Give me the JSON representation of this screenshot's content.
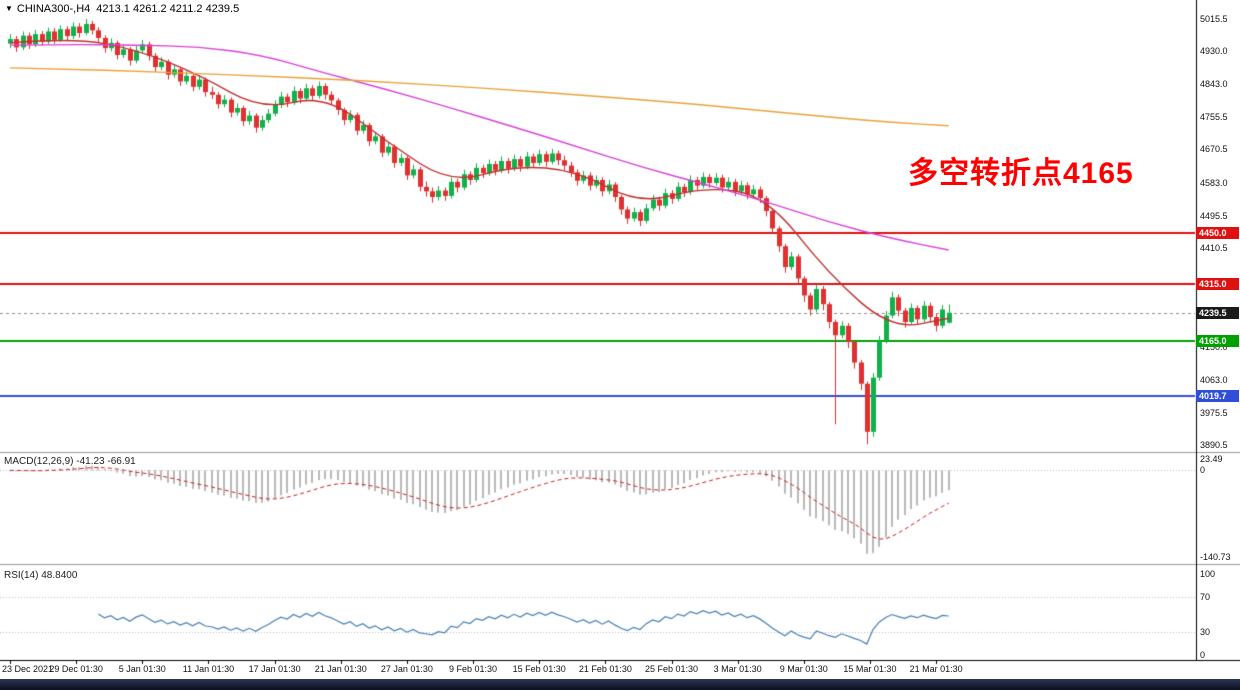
{
  "header": {
    "dropdown_icon": "▼",
    "symbol_timeframe": "CHINA300-,H4",
    "ohlc": "4213.1 4261.2 4211.2 4239.5"
  },
  "annotation": {
    "text": "多空转折点4165",
    "color": "#ff0000"
  },
  "colors": {
    "bull": "#12b04a",
    "bear": "#e03030",
    "ma_fast": "#c22f2f",
    "ma_mid": "#d943d9",
    "ma_slow": "#e8a33b",
    "macd_hist": "#b9b9b9",
    "macd_signal": "#d02020",
    "rsi_line": "#4a7fb5",
    "dotted_level": "#c0c0c0",
    "separator": "#9a9a9a",
    "axis_line": "#000000"
  },
  "chart_data": [
    {
      "type": "candlestick",
      "title": "CHINA300- H4",
      "price_range": [
        3877,
        5044
      ],
      "label_step": 10.5,
      "x_labels": [
        "23 Dec 2021",
        "29 Dec 01:30",
        "5 Jan 01:30",
        "11 Jan 01:30",
        "17 Jan 01:30",
        "21 Jan 01:30",
        "27 Jan 01:30",
        "9 Feb 01:30",
        "15 Feb 01:30",
        "21 Feb 01:30",
        "25 Feb 01:30",
        "3 Mar 01:30",
        "9 Mar 01:30",
        "15 Mar 01:30",
        "21 Mar 01:30"
      ],
      "price_axis_labels": [
        "5015.5",
        "4930.0",
        "4843.0",
        "4755.5",
        "4670.5",
        "4583.0",
        "4495.5",
        "4410.5",
        "4150.0",
        "4063.0",
        "3975.5",
        "3890.5"
      ],
      "hlines": [
        {
          "price": 4450.0,
          "label": "4450.0",
          "color": "#e01010",
          "width": 2
        },
        {
          "price": 4315.0,
          "label": "4315.0",
          "color": "#e01010",
          "width": 2
        },
        {
          "price": 4165.0,
          "label": "4165.0",
          "color": "#00a000",
          "width": 2
        },
        {
          "price": 4019.7,
          "label": "4019.7",
          "color": "#2f4fd8",
          "width": 2
        }
      ],
      "current_price": {
        "value": 4239.5,
        "label": "4239.5",
        "badge_bg": "#1a1a1a"
      },
      "overlays": [
        {
          "name": "ma-fast-red",
          "color": "#c22f2f",
          "sample_step": 10,
          "values": [
            4952,
            4965,
            4935,
            4868,
            4775,
            4815,
            4688,
            4580,
            4628,
            4615,
            4525,
            4572,
            4550,
            4340,
            4195,
            4225
          ]
        },
        {
          "name": "ma-mid-magenta",
          "color": "#d943d9",
          "sample_step": 10,
          "values": [
            4946,
            4948,
            4946,
            4942,
            4920,
            4872,
            4828,
            4780,
            4730,
            4678,
            4625,
            4580,
            4533,
            4478,
            4435,
            4405
          ]
        },
        {
          "name": "ma-slow-orange",
          "color": "#e8a33b",
          "sample_step": 10,
          "values": [
            4886,
            4882,
            4877,
            4871,
            4864,
            4857,
            4848,
            4838,
            4827,
            4815,
            4802,
            4788,
            4772,
            4756,
            4742,
            4733
          ]
        }
      ],
      "candles": [
        [
          4950,
          4975,
          4938,
          4962
        ],
        [
          4962,
          4970,
          4928,
          4940
        ],
        [
          4940,
          4982,
          4933,
          4971
        ],
        [
          4971,
          4979,
          4936,
          4948
        ],
        [
          4948,
          4986,
          4941,
          4975
        ],
        [
          4975,
          4983,
          4944,
          4955
        ],
        [
          4955,
          4992,
          4949,
          4982
        ],
        [
          4982,
          4991,
          4950,
          4960
        ],
        [
          4960,
          4998,
          4954,
          4988
        ],
        [
          4988,
          4996,
          4958,
          4970
        ],
        [
          4970,
          5006,
          4962,
          4995
        ],
        [
          4995,
          5004,
          4966,
          4978
        ],
        [
          4978,
          5015,
          4972,
          5002
        ],
        [
          5002,
          5010,
          4974,
          4985
        ],
        [
          4985,
          4993,
          4952,
          4965
        ],
        [
          4965,
          4972,
          4926,
          4938
        ],
        [
          4938,
          4964,
          4930,
          4952
        ],
        [
          4952,
          4958,
          4908,
          4920
        ],
        [
          4920,
          4947,
          4912,
          4935
        ],
        [
          4935,
          4941,
          4892,
          4905
        ],
        [
          4905,
          4944,
          4898,
          4932
        ],
        [
          4932,
          4960,
          4925,
          4948
        ],
        [
          4948,
          4955,
          4905,
          4918
        ],
        [
          4918,
          4925,
          4875,
          4888
        ],
        [
          4888,
          4914,
          4880,
          4902
        ],
        [
          4902,
          4908,
          4855,
          4868
        ],
        [
          4868,
          4894,
          4860,
          4882
        ],
        [
          4882,
          4888,
          4838,
          4850
        ],
        [
          4850,
          4877,
          4842,
          4865
        ],
        [
          4865,
          4871,
          4824,
          4836
        ],
        [
          4836,
          4867,
          4828,
          4855
        ],
        [
          4855,
          4861,
          4810,
          4822
        ],
        [
          4822,
          4836,
          4804,
          4815
        ],
        [
          4815,
          4822,
          4778,
          4790
        ],
        [
          4790,
          4814,
          4782,
          4802
        ],
        [
          4802,
          4808,
          4755,
          4768
        ],
        [
          4768,
          4792,
          4760,
          4780
        ],
        [
          4780,
          4786,
          4732,
          4745
        ],
        [
          4745,
          4772,
          4736,
          4760
        ],
        [
          4760,
          4766,
          4715,
          4728
        ],
        [
          4728,
          4760,
          4720,
          4748
        ],
        [
          4748,
          4777,
          4740,
          4765
        ],
        [
          4765,
          4800,
          4758,
          4788
        ],
        [
          4788,
          4822,
          4780,
          4810
        ],
        [
          4810,
          4818,
          4782,
          4795
        ],
        [
          4795,
          4837,
          4788,
          4825
        ],
        [
          4825,
          4832,
          4792,
          4805
        ],
        [
          4805,
          4844,
          4798,
          4832
        ],
        [
          4832,
          4840,
          4800,
          4812
        ],
        [
          4812,
          4850,
          4805,
          4838
        ],
        [
          4838,
          4845,
          4802,
          4815
        ],
        [
          4815,
          4824,
          4788,
          4800
        ],
        [
          4800,
          4806,
          4762,
          4775
        ],
        [
          4775,
          4781,
          4735,
          4748
        ],
        [
          4748,
          4774,
          4740,
          4762
        ],
        [
          4762,
          4768,
          4708,
          4720
        ],
        [
          4720,
          4747,
          4712,
          4735
        ],
        [
          4735,
          4741,
          4680,
          4692
        ],
        [
          4692,
          4717,
          4684,
          4705
        ],
        [
          4705,
          4711,
          4650,
          4662
        ],
        [
          4662,
          4690,
          4654,
          4678
        ],
        [
          4678,
          4684,
          4622,
          4635
        ],
        [
          4635,
          4660,
          4627,
          4648
        ],
        [
          4648,
          4654,
          4590,
          4602
        ],
        [
          4602,
          4630,
          4594,
          4618
        ],
        [
          4618,
          4624,
          4560,
          4572
        ],
        [
          4572,
          4586,
          4546,
          4560
        ],
        [
          4560,
          4570,
          4530,
          4545
        ],
        [
          4545,
          4574,
          4536,
          4562
        ],
        [
          4562,
          4570,
          4535,
          4548
        ],
        [
          4548,
          4596,
          4541,
          4585
        ],
        [
          4585,
          4593,
          4557,
          4570
        ],
        [
          4570,
          4617,
          4563,
          4605
        ],
        [
          4605,
          4613,
          4577,
          4590
        ],
        [
          4590,
          4634,
          4583,
          4622
        ],
        [
          4622,
          4630,
          4595,
          4608
        ],
        [
          4608,
          4644,
          4601,
          4632
        ],
        [
          4632,
          4640,
          4602,
          4615
        ],
        [
          4615,
          4652,
          4608,
          4640
        ],
        [
          4640,
          4648,
          4607,
          4620
        ],
        [
          4620,
          4657,
          4613,
          4645
        ],
        [
          4645,
          4653,
          4612,
          4625
        ],
        [
          4625,
          4664,
          4618,
          4652
        ],
        [
          4652,
          4660,
          4622,
          4635
        ],
        [
          4635,
          4670,
          4628,
          4658
        ],
        [
          4658,
          4666,
          4625,
          4638
        ],
        [
          4638,
          4672,
          4631,
          4660
        ],
        [
          4660,
          4668,
          4629,
          4642
        ],
        [
          4642,
          4654,
          4615,
          4628
        ],
        [
          4628,
          4638,
          4598,
          4610
        ],
        [
          4610,
          4618,
          4575,
          4588
        ],
        [
          4588,
          4614,
          4580,
          4602
        ],
        [
          4602,
          4610,
          4562,
          4575
        ],
        [
          4575,
          4602,
          4568,
          4590
        ],
        [
          4590,
          4597,
          4547,
          4560
        ],
        [
          4560,
          4590,
          4552,
          4578
        ],
        [
          4578,
          4584,
          4532,
          4545
        ],
        [
          4545,
          4551,
          4498,
          4512
        ],
        [
          4512,
          4520,
          4474,
          4488
        ],
        [
          4488,
          4517,
          4480,
          4505
        ],
        [
          4505,
          4512,
          4468,
          4482
        ],
        [
          4482,
          4527,
          4475,
          4515
        ],
        [
          4515,
          4550,
          4508,
          4538
        ],
        [
          4538,
          4546,
          4509,
          4522
        ],
        [
          4522,
          4567,
          4515,
          4555
        ],
        [
          4555,
          4563,
          4527,
          4540
        ],
        [
          4540,
          4584,
          4533,
          4572
        ],
        [
          4572,
          4580,
          4545,
          4558
        ],
        [
          4558,
          4602,
          4551,
          4590
        ],
        [
          4590,
          4598,
          4562,
          4575
        ],
        [
          4575,
          4610,
          4568,
          4598
        ],
        [
          4598,
          4606,
          4569,
          4582
        ],
        [
          4582,
          4608,
          4575,
          4596
        ],
        [
          4596,
          4604,
          4557,
          4570
        ],
        [
          4570,
          4597,
          4563,
          4585
        ],
        [
          4585,
          4593,
          4547,
          4560
        ],
        [
          4560,
          4588,
          4553,
          4576
        ],
        [
          4576,
          4584,
          4539,
          4552
        ],
        [
          4552,
          4577,
          4545,
          4565
        ],
        [
          4565,
          4573,
          4529,
          4542
        ],
        [
          4542,
          4548,
          4494,
          4508
        ],
        [
          4508,
          4514,
          4448,
          4462
        ],
        [
          4462,
          4468,
          4400,
          4415
        ],
        [
          4415,
          4421,
          4345,
          4360
        ],
        [
          4360,
          4400,
          4352,
          4388
        ],
        [
          4388,
          4394,
          4315,
          4330
        ],
        [
          4330,
          4336,
          4268,
          4285
        ],
        [
          4285,
          4292,
          4232,
          4248
        ],
        [
          4248,
          4314,
          4240,
          4302
        ],
        [
          4302,
          4310,
          4246,
          4262
        ],
        [
          4262,
          4268,
          4198,
          4215
        ],
        [
          4215,
          4221,
          3945,
          4180
        ],
        [
          4180,
          4217,
          4172,
          4205
        ],
        [
          4205,
          4212,
          4146,
          4162
        ],
        [
          4162,
          4168,
          4092,
          4108
        ],
        [
          4108,
          4115,
          4035,
          4052
        ],
        [
          4052,
          4058,
          3892,
          3925
        ],
        [
          3925,
          4080,
          3912,
          4068
        ],
        [
          4068,
          4178,
          4060,
          4165
        ],
        [
          4165,
          4244,
          4158,
          4232
        ],
        [
          4232,
          4295,
          4225,
          4280
        ],
        [
          4280,
          4288,
          4230,
          4245
        ],
        [
          4245,
          4252,
          4200,
          4215
        ],
        [
          4215,
          4264,
          4208,
          4252
        ],
        [
          4252,
          4259,
          4207,
          4222
        ],
        [
          4222,
          4270,
          4215,
          4258
        ],
        [
          4258,
          4266,
          4214,
          4228
        ],
        [
          4228,
          4236,
          4190,
          4205
        ],
        [
          4205,
          4260,
          4198,
          4248
        ],
        [
          4213.1,
          4261.2,
          4211.2,
          4239.5
        ]
      ]
    },
    {
      "type": "macd",
      "label": "MACD(12,26,9)",
      "values_text": "-41.23 -66.91",
      "params": [
        12,
        26,
        9
      ],
      "range": [
        -140.73,
        23.49
      ],
      "axis_labels": [
        "23.49",
        "0",
        "-140.73"
      ]
    },
    {
      "type": "rsi",
      "label": "RSI(14)",
      "value_text": "48.8400",
      "period": 14,
      "levels": [
        70,
        30
      ],
      "range": [
        0,
        100
      ],
      "axis_labels": [
        "100",
        "70",
        "30",
        "0"
      ]
    }
  ]
}
